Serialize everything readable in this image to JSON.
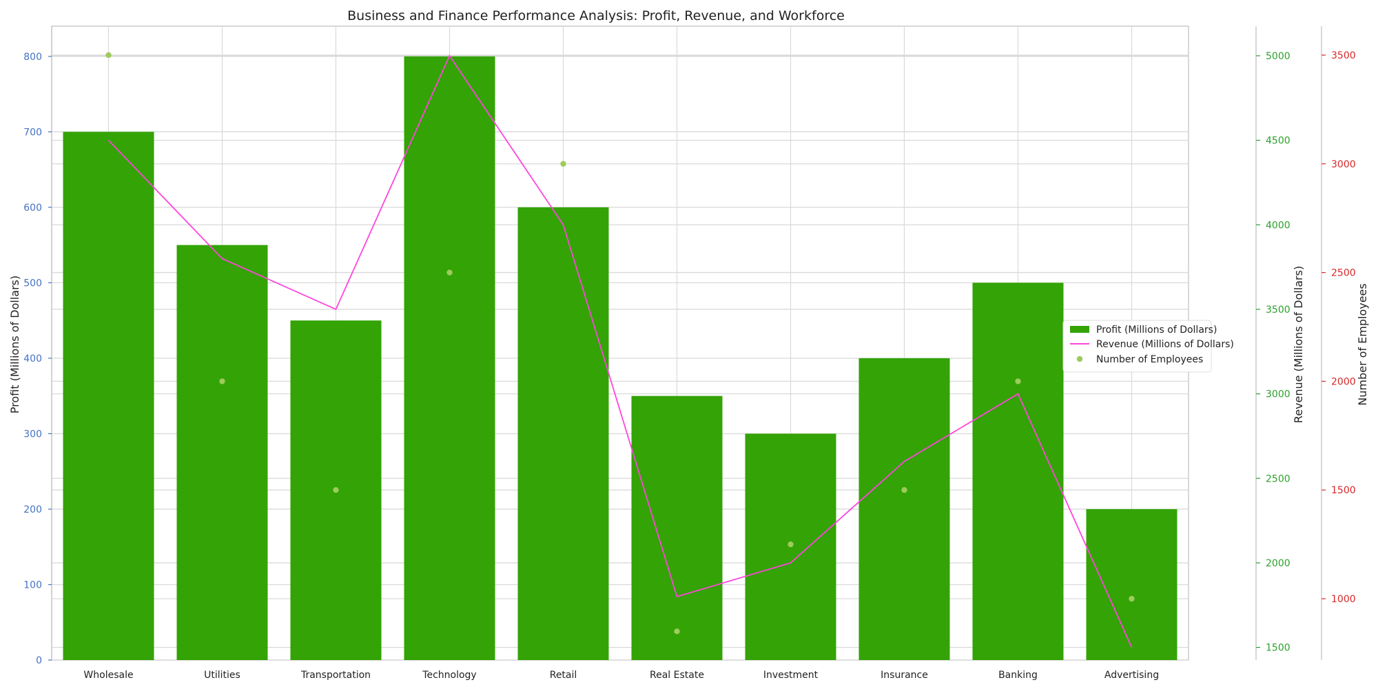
{
  "chart_data": {
    "type": "bar",
    "title": "Business and Finance Performance Analysis: Profit, Revenue, and Workforce",
    "categories": [
      "Wholesale",
      "Utilities",
      "Transportation",
      "Technology",
      "Retail",
      "Real Estate",
      "Investment",
      "Insurance",
      "Banking",
      "Advertising"
    ],
    "xlabel": "",
    "grid": true,
    "legend_position": "center-right",
    "series": [
      {
        "name": "Profit (Millions of Dollars)",
        "kind": "bar",
        "axis": "left",
        "color": "#33a305",
        "values": [
          700,
          550,
          450,
          800,
          600,
          350,
          300,
          400,
          500,
          200
        ]
      },
      {
        "name": "Revenue (Millions of Dollars)",
        "kind": "line",
        "axis": "right1",
        "color": "#ff44dd",
        "values": [
          4500,
          3800,
          3500,
          5000,
          4000,
          1800,
          2000,
          2600,
          3000,
          1500
        ]
      },
      {
        "name": "Number of Employees",
        "kind": "scatter",
        "axis": "right2",
        "color": "#9dcb5c",
        "values": [
          3500,
          2000,
          1500,
          2500,
          3000,
          850,
          1250,
          1500,
          2000,
          1000
        ]
      }
    ],
    "axes": {
      "left": {
        "label": "Profit (Millions of Dollars)",
        "ylim": [
          0,
          840
        ],
        "ticks": [
          0,
          100,
          200,
          300,
          400,
          500,
          600,
          700,
          800
        ],
        "tick_color": "#4472c4"
      },
      "right1": {
        "label": "Revenue (Millions of Dollars)",
        "ylim": [
          1425,
          5175
        ],
        "ticks": [
          1500,
          2000,
          2500,
          3000,
          3500,
          4000,
          4500,
          5000
        ],
        "tick_color": "#2ca02c"
      },
      "right2": {
        "label": "Number of Employees",
        "ylim": [
          718,
          3633
        ],
        "ticks": [
          1000,
          1500,
          2000,
          2500,
          3000,
          3500
        ],
        "tick_color": "#d62728"
      }
    }
  }
}
